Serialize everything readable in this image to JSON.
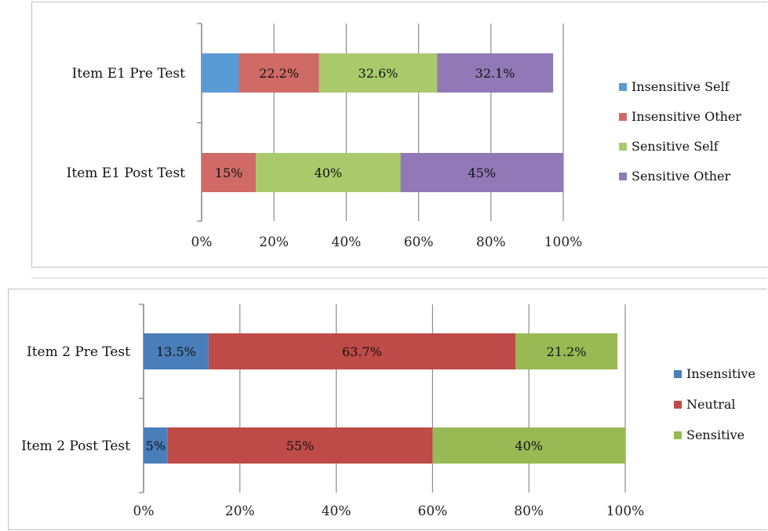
{
  "chart_data": [
    {
      "type": "bar",
      "orientation": "horizontal",
      "stacked": "percent",
      "categories": [
        "Item E1 Pre Test",
        "Item E1 Post Test"
      ],
      "series": [
        {
          "name": "Insensitive Self",
          "values": [
            10.3,
            0
          ],
          "labels": [
            "",
            ""
          ],
          "color": "#5b9bd5"
        },
        {
          "name": "Insensitive Other",
          "values": [
            22.2,
            15
          ],
          "labels": [
            "22.2%",
            "15%"
          ],
          "color": "#d06a66"
        },
        {
          "name": "Sensitive Self",
          "values": [
            32.6,
            40
          ],
          "labels": [
            "32.6%",
            "40%"
          ],
          "color": "#a9c96b"
        },
        {
          "name": "Sensitive Other",
          "values": [
            32.1,
            45
          ],
          "labels": [
            "32.1%",
            "45%"
          ],
          "color": "#9179b7"
        }
      ],
      "x_ticks": [
        "0%",
        "20%",
        "40%",
        "60%",
        "80%",
        "100%"
      ],
      "xlim": [
        0,
        100
      ],
      "grid": true,
      "legend": "right"
    },
    {
      "type": "bar",
      "orientation": "horizontal",
      "stacked": "percent",
      "categories": [
        "Item 2 Pre Test",
        "Item 2 Post Test"
      ],
      "series": [
        {
          "name": "Insensitive",
          "values": [
            13.5,
            5
          ],
          "labels": [
            "13.5%",
            "5%"
          ],
          "color": "#4a7ebb"
        },
        {
          "name": "Neutral",
          "values": [
            63.7,
            55
          ],
          "labels": [
            "63.7%",
            "55%"
          ],
          "color": "#be4b48"
        },
        {
          "name": "Sensitive",
          "values": [
            21.2,
            40
          ],
          "labels": [
            "21.2%",
            "40%"
          ],
          "color": "#98b954"
        }
      ],
      "x_ticks": [
        "0%",
        "20%",
        "40%",
        "60%",
        "80%",
        "100%"
      ],
      "xlim": [
        0,
        100
      ],
      "grid": true,
      "legend": "right"
    }
  ]
}
